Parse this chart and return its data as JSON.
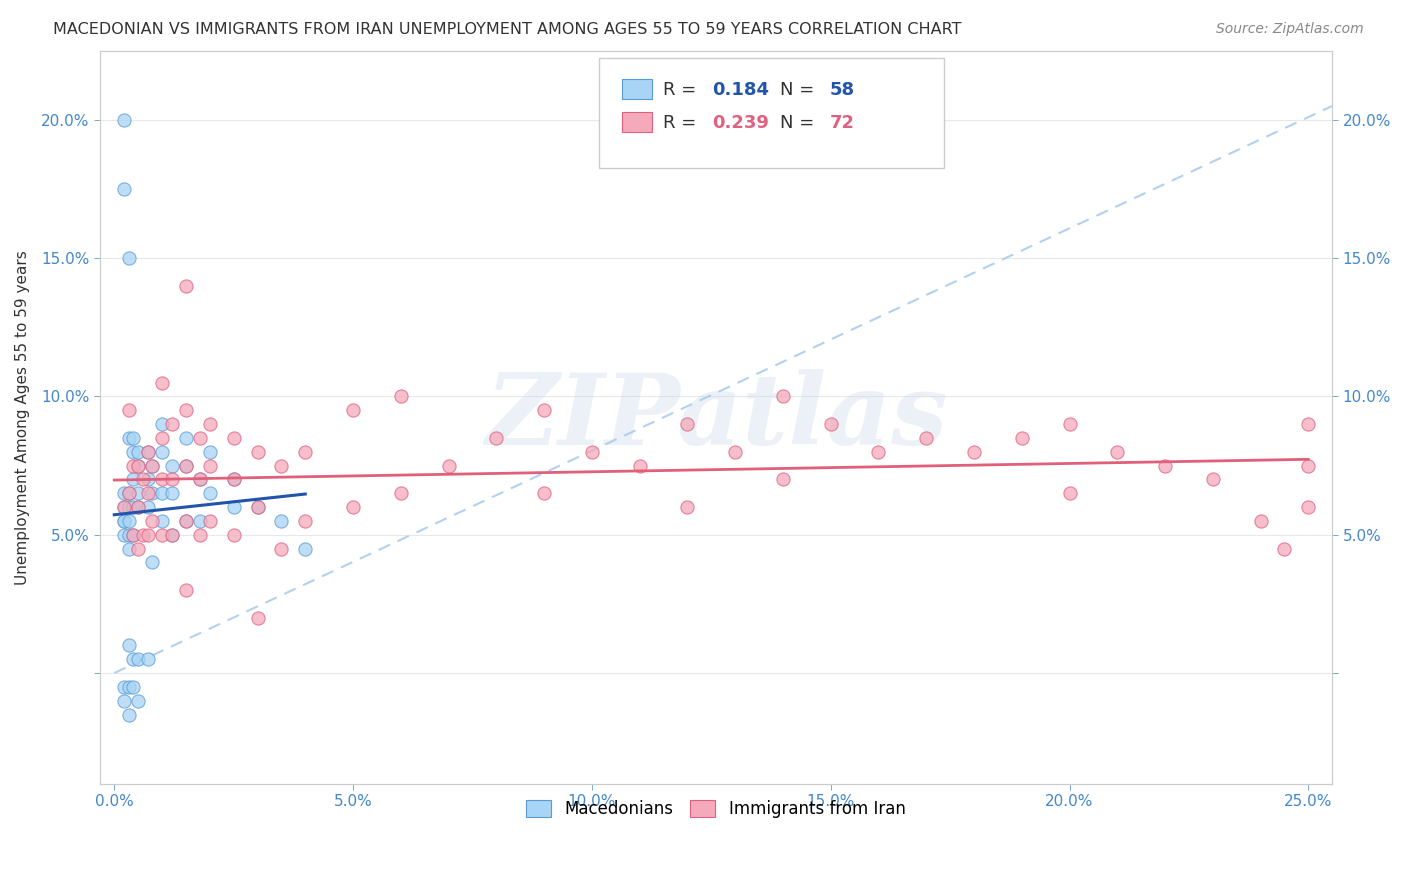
{
  "title": "MACEDONIAN VS IMMIGRANTS FROM IRAN UNEMPLOYMENT AMONG AGES 55 TO 59 YEARS CORRELATION CHART",
  "source": "Source: ZipAtlas.com",
  "ylabel": "Unemployment Among Ages 55 to 59 years",
  "xlim": [
    -0.003,
    0.255
  ],
  "ylim": [
    -0.04,
    0.225
  ],
  "xticks": [
    0.0,
    0.05,
    0.1,
    0.15,
    0.2,
    0.25
  ],
  "yticks": [
    0.0,
    0.05,
    0.1,
    0.15,
    0.2
  ],
  "xticklabels": [
    "0.0%",
    "5.0%",
    "10.0%",
    "15.0%",
    "20.0%",
    "25.0%"
  ],
  "yticklabels": [
    "",
    "5.0%",
    "10.0%",
    "15.0%",
    "20.0%"
  ],
  "macedonian_fill": "#A8D4F5",
  "macedonian_edge": "#5B9BD5",
  "iran_fill": "#F4AABA",
  "iran_edge": "#E06080",
  "macedonian_line_color": "#2255AA",
  "iran_line_color": "#E0607A",
  "dashed_line_color": "#AACCEE",
  "tick_color": "#4488CC",
  "label_color": "#333333",
  "source_color": "#888888",
  "grid_color": "#E8E8E8",
  "watermark_text": "ZIPatlas",
  "background_color": "#FFFFFF",
  "legend_R1": "R = ",
  "legend_V1": "0.184",
  "legend_N1": "N = ",
  "legend_NV1": "58",
  "legend_R2": "R = ",
  "legend_V2": "0.239",
  "legend_N2": "N = ",
  "legend_NV2": "72"
}
